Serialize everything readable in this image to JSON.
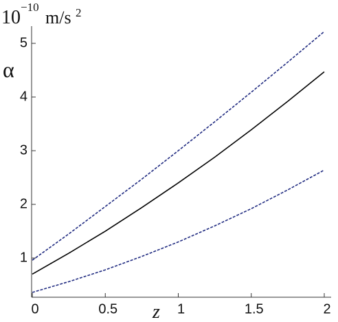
{
  "chart_data": {
    "type": "line",
    "y_unit": {
      "base": "10",
      "exponent": "−10",
      "unit": "m/s",
      "unit_exponent": "2"
    },
    "y_label": "α",
    "x_label": "z",
    "x": [
      0,
      0.25,
      0.5,
      0.75,
      1,
      1.25,
      1.5,
      1.75,
      2
    ],
    "series": [
      {
        "color": "#1f2a80",
        "dash": true,
        "values": [
          0.96,
          1.45,
          1.96,
          2.47,
          3.0,
          3.54,
          4.09,
          4.65,
          5.22
        ]
      },
      {
        "color": "#000000",
        "dash": false,
        "values": [
          0.7,
          1.09,
          1.5,
          1.94,
          2.4,
          2.88,
          3.39,
          3.92,
          4.47
        ]
      },
      {
        "color": "#1f2a80",
        "dash": true,
        "values": [
          0.36,
          0.56,
          0.78,
          1.03,
          1.3,
          1.6,
          1.92,
          2.27,
          2.64
        ]
      }
    ],
    "xlim": [
      0,
      2.05
    ],
    "ylim": [
      0.27,
      5.3
    ],
    "xticks": [
      0,
      0.5,
      1,
      1.5,
      2
    ],
    "yticks": [
      1,
      2,
      3,
      4,
      5
    ]
  }
}
